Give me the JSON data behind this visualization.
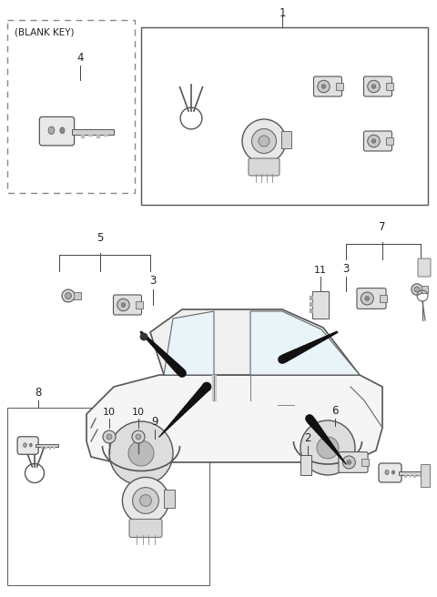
{
  "bg_color": "#ffffff",
  "figsize": [
    4.8,
    6.56
  ],
  "dpi": 100,
  "blank_key_label": "(BLANK KEY)",
  "font_size_small": 7,
  "font_size_num": 8.5,
  "line_color": "#444444",
  "box_color": "#555555"
}
